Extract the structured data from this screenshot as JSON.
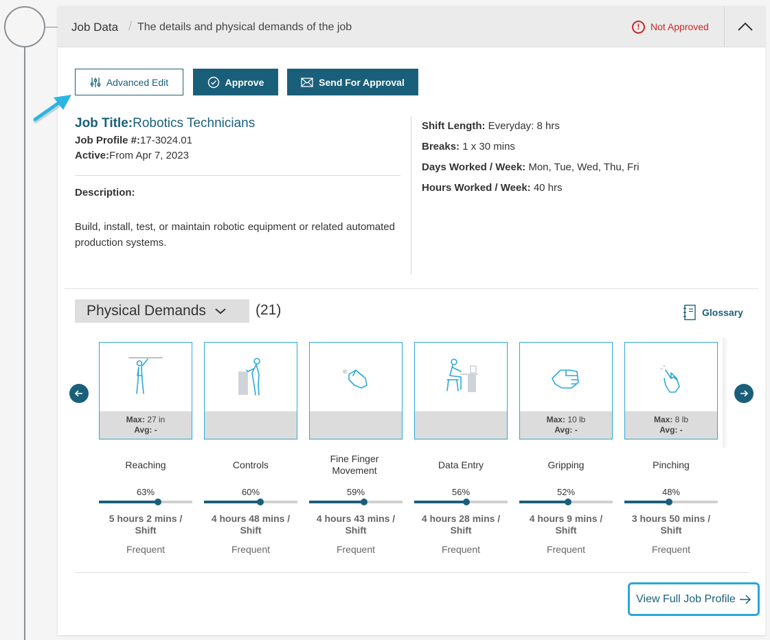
{
  "header": {
    "title": "Job Data",
    "separator": "/",
    "subtitle": "The details and physical demands of the job",
    "status": "Not Approved",
    "status_color": "#c62828",
    "status_icon": "!"
  },
  "actions": {
    "advanced_edit": "Advanced Edit",
    "approve": "Approve",
    "send_for_approval": "Send For Approval"
  },
  "job": {
    "title_label": "Job Title:",
    "title": "Robotics Technicians",
    "profile_label": "Job Profile #:",
    "profile_number": "17-3024.01",
    "active_label": "Active:",
    "active_value": "From Apr 7, 2023",
    "description_label": "Description:",
    "description": "Build, install, test, or maintain robotic equipment or related automated production systems."
  },
  "schedule": {
    "shift_length_label": "Shift Length:",
    "shift_length": "Everyday: 8 hrs",
    "breaks_label": "Breaks:",
    "breaks": "1 x 30 mins",
    "days_label": "Days Worked / Week:",
    "days": "Mon, Tue, Wed, Thu, Fri",
    "hours_label": "Hours Worked / Week:",
    "hours": "40 hrs"
  },
  "physical_demands": {
    "label": "Physical Demands",
    "count": "(21)",
    "glossary": "Glossary",
    "items": [
      {
        "name": "Reaching",
        "icon": "reaching-icon",
        "max_label": "Max:",
        "max": "27 in",
        "avg_label": "Avg:",
        "avg": "-",
        "percent_label": "63%",
        "percent": 63,
        "duration": "5 hours 2 mins / Shift",
        "frequency": "Frequent"
      },
      {
        "name": "Controls",
        "icon": "controls-icon",
        "max_label": "",
        "max": "",
        "avg_label": "",
        "avg": "",
        "percent_label": "60%",
        "percent": 60,
        "duration": "4 hours 48 mins / Shift",
        "frequency": "Frequent"
      },
      {
        "name": "Fine Finger Movement",
        "icon": "fine-finger-movement-icon",
        "max_label": "",
        "max": "",
        "avg_label": "",
        "avg": "",
        "percent_label": "59%",
        "percent": 59,
        "duration": "4 hours 43 mins / Shift",
        "frequency": "Frequent"
      },
      {
        "name": "Data Entry",
        "icon": "data-entry-icon",
        "max_label": "",
        "max": "",
        "avg_label": "",
        "avg": "",
        "percent_label": "56%",
        "percent": 56,
        "duration": "4 hours 28 mins / Shift",
        "frequency": "Frequent"
      },
      {
        "name": "Gripping",
        "icon": "gripping-icon",
        "max_label": "Max:",
        "max": "10 lb",
        "avg_label": "Avg:",
        "avg": "-",
        "percent_label": "52%",
        "percent": 52,
        "duration": "4 hours 9 mins / Shift",
        "frequency": "Frequent"
      },
      {
        "name": "Pinching",
        "icon": "pinching-icon",
        "max_label": "Max:",
        "max": "8 lb",
        "avg_label": "Avg:",
        "avg": "-",
        "percent_label": "48%",
        "percent": 48,
        "duration": "3 hours 50 mins / Shift",
        "frequency": "Frequent"
      }
    ]
  },
  "footer": {
    "view_full": "View Full Job Profile"
  },
  "colors": {
    "primary": "#1a5f7a",
    "accent": "#29a8d6",
    "danger": "#c62828"
  }
}
